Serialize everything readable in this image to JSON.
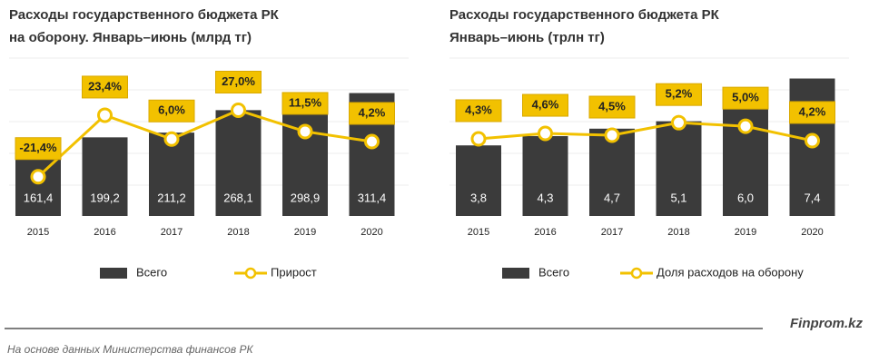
{
  "chart_data": [
    {
      "type": "bar-line",
      "title": [
        "Расходы государственного бюджета РК",
        "на оборону. Январь–июнь (млрд тг)"
      ],
      "categories": [
        "2015",
        "2016",
        "2017",
        "2018",
        "2019",
        "2020"
      ],
      "series": [
        {
          "name": "Всего",
          "color": "#3b3b3b",
          "values": [
            161.4,
            199.2,
            211.2,
            268.1,
            298.9,
            311.4
          ],
          "value_labels": [
            "161,4",
            "199,2",
            "211,2",
            "268,1",
            "298,9",
            "311,4"
          ]
        },
        {
          "name": "Прирост",
          "color": "#f2c100",
          "axis": "y2",
          "values": [
            -21.4,
            23.4,
            6.0,
            27.0,
            11.5,
            4.2
          ],
          "value_labels": [
            "-21,4%",
            "23,4%",
            "6,0%",
            "27,0%",
            "11,5%",
            "4,2%"
          ]
        }
      ],
      "ylim": [
        0,
        400
      ],
      "y2lim": [
        -50,
        65
      ]
    },
    {
      "type": "bar-line",
      "title": [
        "Расходы государственного бюджета РК",
        "Январь–июнь (трлн тг)"
      ],
      "categories": [
        "2015",
        "2016",
        "2017",
        "2018",
        "2019",
        "2020"
      ],
      "series": [
        {
          "name": "Всего",
          "color": "#3b3b3b",
          "values": [
            3.8,
            4.3,
            4.7,
            5.1,
            6.0,
            7.4
          ],
          "value_labels": [
            "3,8",
            "4,3",
            "4,7",
            "5,1",
            "6,0",
            "7,4"
          ]
        },
        {
          "name": "Доля расходов на оборону",
          "color": "#f2c100",
          "axis": "y2",
          "values": [
            4.3,
            4.6,
            4.5,
            5.2,
            5.0,
            4.2
          ],
          "value_labels": [
            "4,3%",
            "4,6%",
            "4,5%",
            "5,2%",
            "5,0%",
            "4,2%"
          ]
        }
      ],
      "ylim": [
        0,
        8.5
      ],
      "y2lim": [
        0,
        8.8
      ]
    }
  ],
  "footer": {
    "brand": "Finprom.kz",
    "source": "На основе данных Министерства финансов РК"
  }
}
